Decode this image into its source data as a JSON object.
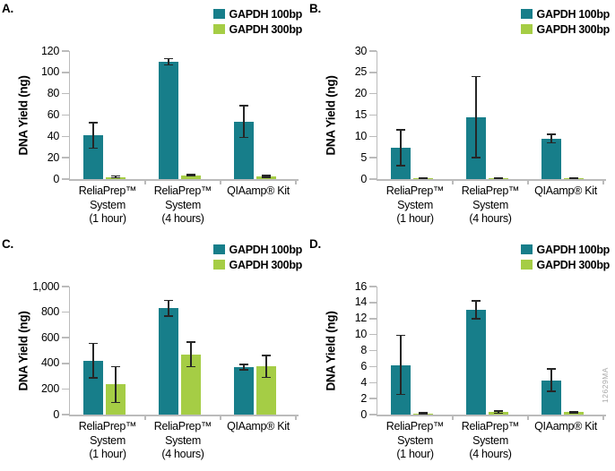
{
  "figure": {
    "side_code": "12629MA",
    "colors": {
      "teal": "#177E8A",
      "green": "#A5CD45",
      "axis": "#BBBBBB",
      "error": "#262626"
    }
  },
  "chart_data": [
    {
      "panel": "A.",
      "type": "bar",
      "ylabel": "DNA Yield (ng)",
      "ylim": [
        0,
        120
      ],
      "ytick_values": [
        0,
        20,
        40,
        60,
        80,
        100,
        120
      ],
      "ytick_labels": [
        "0",
        "20",
        "40",
        "60",
        "80",
        "100",
        "120"
      ],
      "categories": [
        [
          "ReliaPrep™",
          "System",
          "(1 hour)"
        ],
        [
          "ReliaPrep™",
          "System",
          "(4 hours)"
        ],
        [
          "QIAamp® Kit"
        ]
      ],
      "series": [
        {
          "name": "GAPDH 100bp",
          "color_key": "teal",
          "values": [
            41,
            110,
            54
          ],
          "errors": [
            12,
            3,
            15
          ]
        },
        {
          "name": "GAPDH 300bp",
          "color_key": "green",
          "values": [
            2,
            3.5,
            2.5
          ],
          "errors": [
            0.8,
            0.5,
            0.8
          ]
        }
      ]
    },
    {
      "panel": "B.",
      "type": "bar",
      "ylabel": "DNA Yield (ng)",
      "ylim": [
        0,
        30
      ],
      "ytick_values": [
        0,
        5,
        10,
        15,
        20,
        25,
        30
      ],
      "ytick_labels": [
        "0",
        "5",
        "10",
        "15",
        "20",
        "25",
        "30"
      ],
      "categories": [
        [
          "ReliaPrep™",
          "System",
          "(1 hour)"
        ],
        [
          "ReliaPrep™",
          "System",
          "(4 hours)"
        ],
        [
          "QIAamp® Kit"
        ]
      ],
      "series": [
        {
          "name": "GAPDH 100bp",
          "color_key": "teal",
          "values": [
            7.3,
            14.5,
            9.5
          ],
          "errors": [
            4.2,
            9.5,
            1
          ]
        },
        {
          "name": "GAPDH 300bp",
          "color_key": "green",
          "values": [
            0.15,
            0.25,
            0.25
          ],
          "errors": [
            0.05,
            0.1,
            0.1
          ]
        }
      ]
    },
    {
      "panel": "C.",
      "type": "bar",
      "ylabel": "DNA Yield (ng)",
      "ylim": [
        0,
        1000
      ],
      "ytick_values": [
        0,
        200,
        400,
        600,
        800,
        1000
      ],
      "ytick_labels": [
        "0",
        "200",
        "400",
        "600",
        "800",
        "1,000"
      ],
      "categories": [
        [
          "ReliaPrep™",
          "System",
          "(1 hour)"
        ],
        [
          "ReliaPrep™",
          "System",
          "(4 hours)"
        ],
        [
          "QIAamp® Kit"
        ]
      ],
      "series": [
        {
          "name": "GAPDH 100bp",
          "color_key": "teal",
          "values": [
            420,
            830,
            370
          ],
          "errors": [
            135,
            60,
            20
          ]
        },
        {
          "name": "GAPDH 300bp",
          "color_key": "green",
          "values": [
            235,
            470,
            375
          ],
          "errors": [
            140,
            95,
            85
          ]
        }
      ]
    },
    {
      "panel": "D.",
      "type": "bar",
      "ylabel": "DNA Yield (ng)",
      "ylim": [
        0,
        16
      ],
      "ytick_values": [
        0,
        2,
        4,
        6,
        8,
        10,
        12,
        14,
        16
      ],
      "ytick_labels": [
        "0",
        "2",
        "4",
        "6",
        "8",
        "10",
        "12",
        "14",
        "16"
      ],
      "categories": [
        [
          "ReliaPrep™",
          "System",
          "(1 hour)"
        ],
        [
          "ReliaPrep™",
          "System",
          "(4 hours)"
        ],
        [
          "QIAamp® Kit"
        ]
      ],
      "series": [
        {
          "name": "GAPDH 100bp",
          "color_key": "teal",
          "values": [
            6.2,
            13.1,
            4.3
          ],
          "errors": [
            3.7,
            1.1,
            1.4
          ]
        },
        {
          "name": "GAPDH 300bp",
          "color_key": "green",
          "values": [
            0.15,
            0.3,
            0.3
          ],
          "errors": [
            0.1,
            0.15,
            0.1
          ]
        }
      ]
    }
  ]
}
